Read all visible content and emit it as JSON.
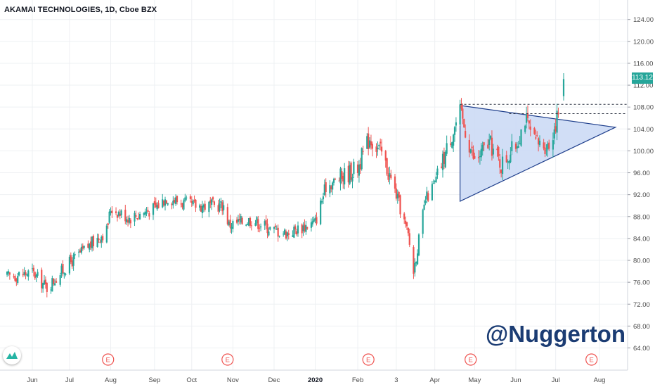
{
  "header": {
    "title": "AKAMAI TECHNOLOGIES, 1D, Cboe BZX"
  },
  "watermark": "@Nuggerton",
  "last_price_label": "113.12",
  "earnings_marker_label": "E",
  "colors": {
    "up": "#26a69a",
    "down": "#ef5350",
    "triangle_fill": "#c9d8f5",
    "triangle_line": "#1f3f8c",
    "grid": "#eef0f3"
  },
  "chart_data": {
    "type": "candlestick",
    "title": "AKAMAI TECHNOLOGIES, 1D, Cboe BZX",
    "xlabel": "",
    "ylabel": "",
    "ylim": [
      61,
      126
    ],
    "y_ticks": [
      "64.00",
      "68.00",
      "72.00",
      "76.00",
      "80.00",
      "84.00",
      "88.00",
      "92.00",
      "96.00",
      "100.00",
      "104.00",
      "108.00",
      "112.00",
      "116.00",
      "120.00",
      "124.00"
    ],
    "x_tick_labels": [
      {
        "label": "Jun",
        "date": "2019-06-03"
      },
      {
        "label": "Jul",
        "date": "2019-07-01"
      },
      {
        "label": "Aug",
        "date": "2019-08-01"
      },
      {
        "label": "Sep",
        "date": "2019-09-03"
      },
      {
        "label": "Oct",
        "date": "2019-10-01"
      },
      {
        "label": "Nov",
        "date": "2019-11-01"
      },
      {
        "label": "Dec",
        "date": "2019-12-02"
      },
      {
        "label": "2020",
        "date": "2020-01-02",
        "bold": true
      },
      {
        "label": "Feb",
        "date": "2020-02-03"
      },
      {
        "label": "3",
        "date": "2020-03-03"
      },
      {
        "label": "Apr",
        "date": "2020-04-01"
      },
      {
        "label": "May",
        "date": "2020-05-01"
      },
      {
        "label": "Jun",
        "date": "2020-06-01"
      },
      {
        "label": "Jul",
        "date": "2020-07-01"
      },
      {
        "label": "Aug",
        "date": "2020-08-03"
      }
    ],
    "last_price": 113.12,
    "earnings_dates": [
      "2019-07-30",
      "2019-10-28",
      "2020-02-11",
      "2020-04-28",
      "2020-07-28"
    ],
    "price_path": [
      {
        "date": "2019-05-15",
        "close": 77.0
      },
      {
        "date": "2019-06-03",
        "close": 77.8
      },
      {
        "date": "2019-06-14",
        "close": 75.0
      },
      {
        "date": "2019-07-01",
        "close": 79.5
      },
      {
        "date": "2019-07-29",
        "close": 85.5
      },
      {
        "date": "2019-08-01",
        "close": 89.5
      },
      {
        "date": "2019-08-15",
        "close": 87.8
      },
      {
        "date": "2019-09-03",
        "close": 89.5
      },
      {
        "date": "2019-09-12",
        "close": 91.5
      },
      {
        "date": "2019-10-01",
        "close": 90.0
      },
      {
        "date": "2019-10-25",
        "close": 90.0
      },
      {
        "date": "2019-10-29",
        "close": 86.5
      },
      {
        "date": "2019-11-15",
        "close": 87.5
      },
      {
        "date": "2019-12-02",
        "close": 85.5
      },
      {
        "date": "2019-12-12",
        "close": 85.0
      },
      {
        "date": "2020-01-02",
        "close": 87.0
      },
      {
        "date": "2020-01-10",
        "close": 93.5
      },
      {
        "date": "2020-02-03",
        "close": 97.0
      },
      {
        "date": "2020-02-12",
        "close": 102.5
      },
      {
        "date": "2020-02-21",
        "close": 99.5
      },
      {
        "date": "2020-03-03",
        "close": 92.0
      },
      {
        "date": "2020-03-12",
        "close": 84.5
      },
      {
        "date": "2020-03-16",
        "close": 78.0
      },
      {
        "date": "2020-03-25",
        "close": 91.0
      },
      {
        "date": "2020-04-01",
        "close": 94.0
      },
      {
        "date": "2020-04-13",
        "close": 102.5
      },
      {
        "date": "2020-04-20",
        "close": 107.0
      },
      {
        "date": "2020-05-01",
        "close": 98.0
      },
      {
        "date": "2020-05-12",
        "close": 101.5
      },
      {
        "date": "2020-05-21",
        "close": 97.5
      },
      {
        "date": "2020-06-01",
        "close": 101.0
      },
      {
        "date": "2020-06-08",
        "close": 106.0
      },
      {
        "date": "2020-06-15",
        "close": 101.5
      },
      {
        "date": "2020-06-26",
        "close": 101.0
      },
      {
        "date": "2020-07-02",
        "close": 106.0
      },
      {
        "date": "2020-07-06",
        "close": 110.5
      }
    ],
    "annotations": [
      {
        "type": "triangle",
        "points": [
          {
            "date": "2020-04-20",
            "price": 108.3
          },
          {
            "date": "2020-08-15",
            "price": 104.3
          },
          {
            "date": "2020-04-20",
            "price": 90.8
          }
        ]
      },
      {
        "type": "hline_dashed",
        "price": 108.5,
        "from": "2020-04-20"
      },
      {
        "type": "hline_dashed",
        "price": 106.8,
        "from": "2020-05-27"
      }
    ],
    "grid": true,
    "legend": "none"
  }
}
